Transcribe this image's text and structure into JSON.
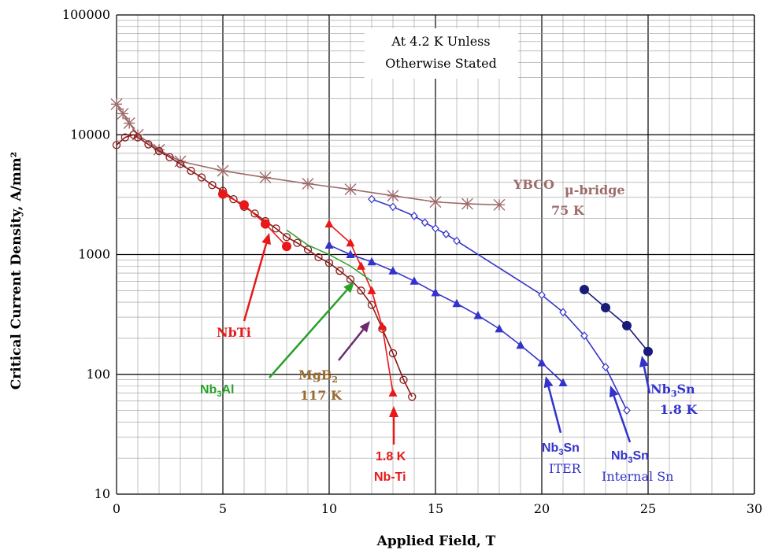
{
  "chart_data": {
    "type": "scatter",
    "title": "",
    "xlabel": "Applied Field, T",
    "ylabel": "Critical Current Density, A/mm²",
    "xlim": [
      0,
      30
    ],
    "ylim": [
      10,
      100000
    ],
    "yscale": "log",
    "x_ticks": [
      "0",
      "5",
      "10",
      "15",
      "20",
      "25",
      "30"
    ],
    "y_ticks": [
      "10",
      "100",
      "1000",
      "10000",
      "100000"
    ],
    "grid": true,
    "legend": "none",
    "note_line1": "At 4.2 K Unless",
    "note_line2": "Otherwise Stated",
    "series": [
      {
        "name": "YBCO μ-bridge 75 K",
        "color": "#9e6b6b",
        "marker": "asterisk",
        "x": [
          0,
          0.3,
          0.6,
          1,
          2,
          3,
          5,
          7,
          9,
          11,
          13,
          15,
          16.5,
          18
        ],
        "y": [
          18000,
          15000,
          12500,
          10000,
          7500,
          6000,
          5000,
          4400,
          3900,
          3500,
          3100,
          2750,
          2650,
          2600
        ]
      },
      {
        "name": "MgB2 117 K",
        "color": "#8b1a1a",
        "marker": "open-circle",
        "x": [
          0,
          0.4,
          0.8,
          1,
          1.5,
          2,
          2.5,
          3,
          3.5,
          4,
          4.5,
          5,
          5.5,
          6,
          6.5,
          7,
          7.5,
          8,
          8.5,
          9,
          9.5,
          10,
          10.5,
          11,
          11.5,
          12,
          12.5,
          13,
          13.5,
          13.9
        ],
        "y": [
          8200,
          9500,
          10000,
          9500,
          8300,
          7300,
          6500,
          5700,
          5000,
          4400,
          3800,
          3400,
          2900,
          2500,
          2200,
          1900,
          1650,
          1400,
          1250,
          1100,
          950,
          850,
          730,
          620,
          500,
          380,
          240,
          150,
          90,
          65
        ]
      },
      {
        "name": "NbTi",
        "color": "#e81818",
        "marker": "filled-circle",
        "x": [
          5,
          6,
          7,
          8
        ],
        "y": [
          3200,
          2600,
          1800,
          1170
        ]
      },
      {
        "name": "1.8 K Nb-Ti",
        "color": "#e81818",
        "marker": "filled-triangle",
        "x": [
          10,
          11,
          11.5,
          12,
          12.5,
          13
        ],
        "y": [
          1800,
          1250,
          800,
          500,
          250,
          70
        ]
      },
      {
        "name": "Nb3Al",
        "color": "#2aa12a",
        "marker": "none",
        "x": [
          8,
          9,
          10,
          11,
          12
        ],
        "y": [
          1600,
          1200,
          1000,
          800,
          600
        ]
      },
      {
        "name": "Nb3Sn ITER",
        "color": "#3333cc",
        "marker": "filled-triangle",
        "x": [
          10,
          11,
          12,
          13,
          14,
          15,
          16,
          17,
          18,
          19,
          20,
          21
        ],
        "y": [
          1200,
          1000,
          870,
          730,
          600,
          480,
          390,
          310,
          240,
          175,
          125,
          85
        ]
      },
      {
        "name": "Nb3Sn Internal Sn",
        "color": "#3333cc",
        "marker": "open-diamond",
        "x": [
          12,
          13,
          14,
          14.5,
          15,
          15.5,
          16,
          20,
          21,
          22,
          23,
          24
        ],
        "y": [
          2900,
          2500,
          2100,
          1850,
          1650,
          1480,
          1300,
          460,
          330,
          210,
          115,
          50
        ]
      },
      {
        "name": "Nb3Sn 1.8 K",
        "color": "#1a1a7a",
        "marker": "filled-circle",
        "x": [
          22,
          23,
          24,
          25
        ],
        "y": [
          510,
          360,
          255,
          155
        ]
      }
    ],
    "annotations": {
      "ybco_label": "YBCO",
      "ybco_label2": "μ-bridge",
      "ybco_temp": "75 K",
      "nbti": "NbTi",
      "nb3al_a": "Nb",
      "nb3al_sub": "3",
      "nb3al_b": "Al",
      "mgb2_a": "MgB",
      "mgb2_sub": "2",
      "mgb2_temp": "117 K",
      "nbti18_temp": "1.8 K",
      "nbti18_name": "Nb-Ti",
      "nb3sn_a": "Nb",
      "nb3sn_sub": "3",
      "nb3sn_b": "Sn",
      "iter": "ITER",
      "internal_sn": "Internal Sn",
      "nb3sn18_temp": "1.8 K"
    }
  }
}
